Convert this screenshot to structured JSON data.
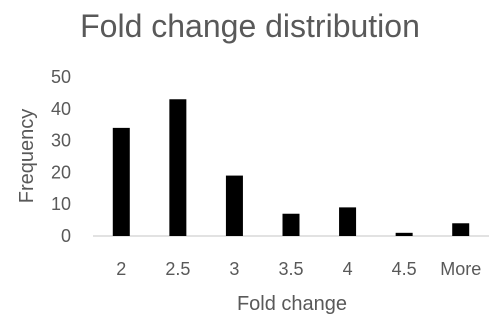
{
  "chart_data": {
    "type": "bar",
    "title": "Fold change distribution",
    "xlabel": "Fold change",
    "ylabel": "Frequency",
    "categories": [
      "2",
      "2.5",
      "3",
      "3.5",
      "4",
      "4.5",
      "More"
    ],
    "values": [
      34,
      43,
      19,
      7,
      9,
      1,
      4
    ],
    "ylim": [
      0,
      50
    ],
    "yticks": [
      0,
      10,
      20,
      30,
      40,
      50
    ],
    "grid": false,
    "legend": "none",
    "bar_color": "#000000",
    "axis_color": "#d9d9d9",
    "text_color": "#595959"
  }
}
